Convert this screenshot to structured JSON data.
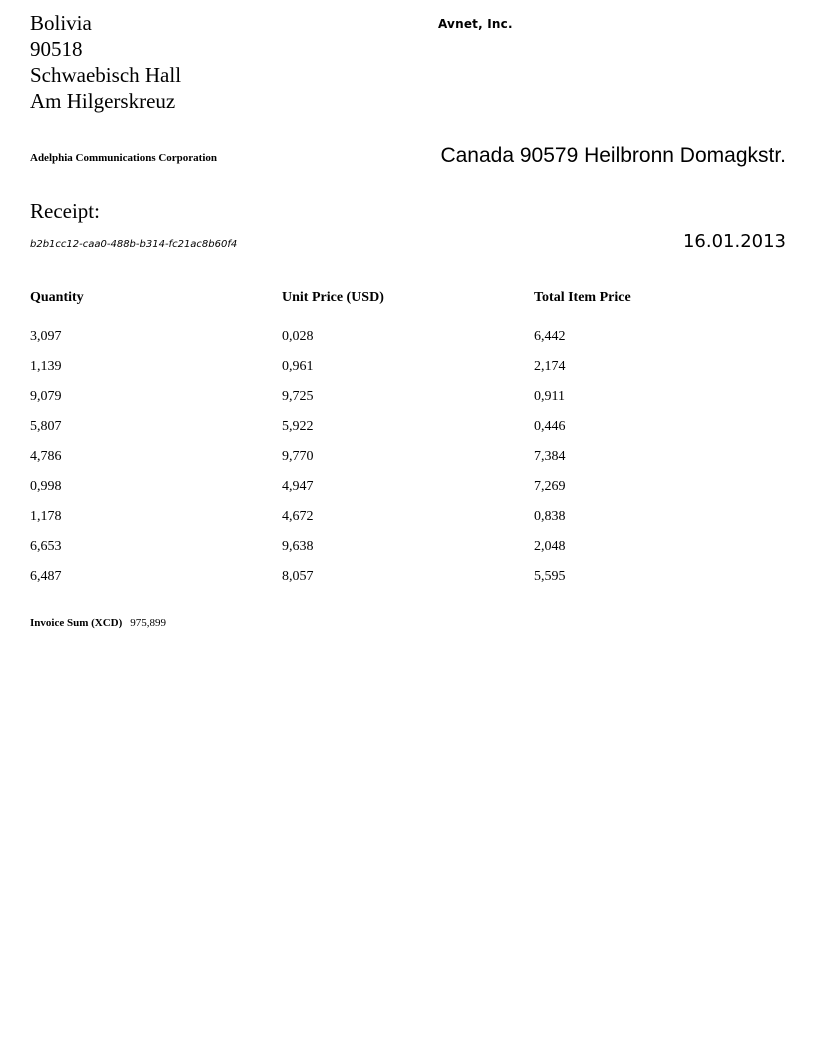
{
  "sender": {
    "address_lines": [
      "Bolivia",
      "90518",
      "Schwaebisch Hall",
      "Am Hilgerskreuz"
    ]
  },
  "vendor": {
    "name": "Avnet, Inc."
  },
  "customer": {
    "name": "Adelphia Communications Corporation",
    "address": "Canada 90579 Heilbronn Domagkstr."
  },
  "receipt": {
    "label": "Receipt:",
    "id": "b2b1cc12-caa0-488b-b314-fc21ac8b60f4",
    "date": "16.01.2013"
  },
  "table": {
    "headers": [
      "Quantity",
      "Unit Price (USD)",
      "Total Item Price"
    ],
    "rows": [
      [
        "3,097",
        "0,028",
        "6,442"
      ],
      [
        "1,139",
        "0,961",
        "2,174"
      ],
      [
        "9,079",
        "9,725",
        "0,911"
      ],
      [
        "5,807",
        "5,922",
        "0,446"
      ],
      [
        "4,786",
        "9,770",
        "7,384"
      ],
      [
        "0,998",
        "4,947",
        "7,269"
      ],
      [
        "1,178",
        "4,672",
        "0,838"
      ],
      [
        "6,653",
        "9,638",
        "2,048"
      ],
      [
        "6,487",
        "8,057",
        "5,595"
      ]
    ]
  },
  "summary": {
    "label": "Invoice Sum (XCD)",
    "value": "975,899"
  }
}
